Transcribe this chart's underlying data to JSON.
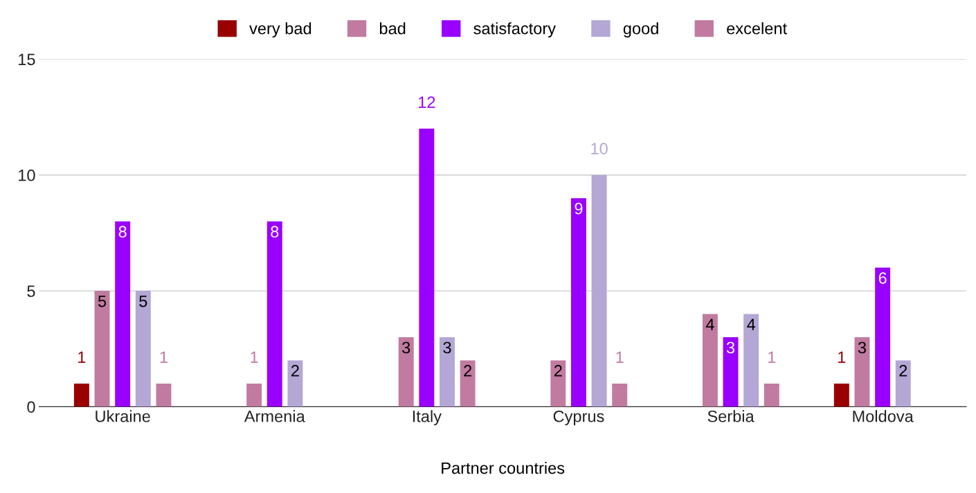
{
  "chart_data": {
    "type": "bar",
    "xlabel": "Partner countries",
    "categories": [
      "Ukraine",
      "Armenia",
      "Italy",
      "Cyprus",
      "Serbia",
      "Moldova"
    ],
    "series": [
      {
        "name": "very bad",
        "color": "#990000",
        "values": [
          1,
          null,
          null,
          null,
          null,
          1
        ]
      },
      {
        "name": "bad",
        "color": "#c27ba0",
        "values": [
          5,
          1,
          3,
          2,
          4,
          3
        ]
      },
      {
        "name": "satisfactory",
        "color": "#9900ff",
        "values": [
          8,
          8,
          12,
          9,
          3,
          6
        ]
      },
      {
        "name": "good",
        "color": "#b4a7d6",
        "values": [
          5,
          2,
          3,
          10,
          4,
          2
        ]
      },
      {
        "name": "excelent",
        "color": "#c27ba0",
        "values": [
          1,
          null,
          2,
          1,
          1,
          null
        ]
      }
    ],
    "ylim": [
      0,
      15
    ],
    "yticks": [
      0,
      5,
      10,
      15
    ],
    "grid": "y",
    "legend": "top",
    "data_labels": true
  }
}
